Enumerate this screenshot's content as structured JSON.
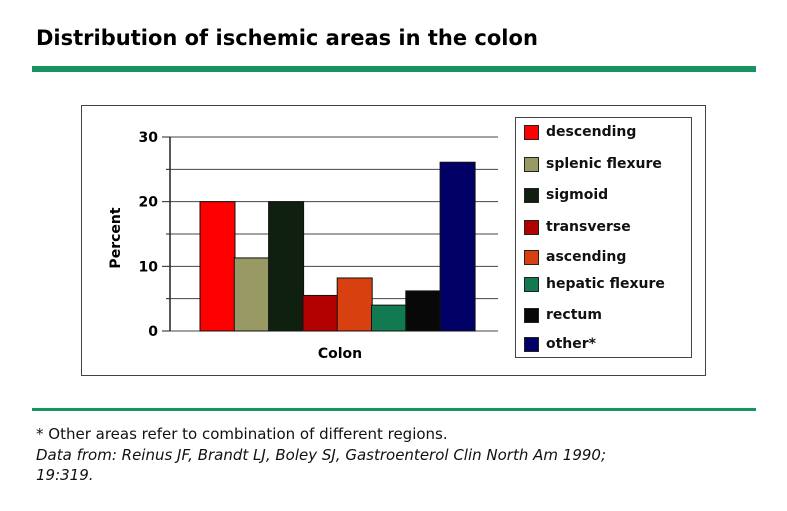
{
  "title": "Distribution of ischemic areas in the colon",
  "colors": {
    "rule": "#16935f"
  },
  "chart_data": {
    "type": "bar",
    "xlabel": "Colon",
    "ylabel": "Percent",
    "ylim": [
      0,
      30
    ],
    "yticks": [
      0,
      10,
      20,
      30
    ],
    "grid": true,
    "legend_position": "right",
    "categories": [
      "Colon"
    ],
    "series": [
      {
        "name": "descending",
        "values": [
          20
        ],
        "color": "#ff0000"
      },
      {
        "name": "splenic flexure",
        "values": [
          11.3
        ],
        "color": "#999966"
      },
      {
        "name": "sigmoid",
        "values": [
          20
        ],
        "color": "#0f2010"
      },
      {
        "name": "transverse",
        "values": [
          5.5
        ],
        "color": "#b30000"
      },
      {
        "name": "ascending",
        "values": [
          8.2
        ],
        "color": "#d94010"
      },
      {
        "name": "hepatic flexure",
        "values": [
          4
        ],
        "color": "#127a50"
      },
      {
        "name": "rectum",
        "values": [
          6.2
        ],
        "color": "#080808"
      },
      {
        "name": "other*",
        "values": [
          26.1
        ],
        "color": "#000066"
      }
    ]
  },
  "footnote": "* Other areas refer to combination of different regions.",
  "source_line1": "Data from: Reinus JF, Brandt LJ, Boley SJ, Gastroenterol Clin North Am 1990;",
  "source_line2": "19:319."
}
